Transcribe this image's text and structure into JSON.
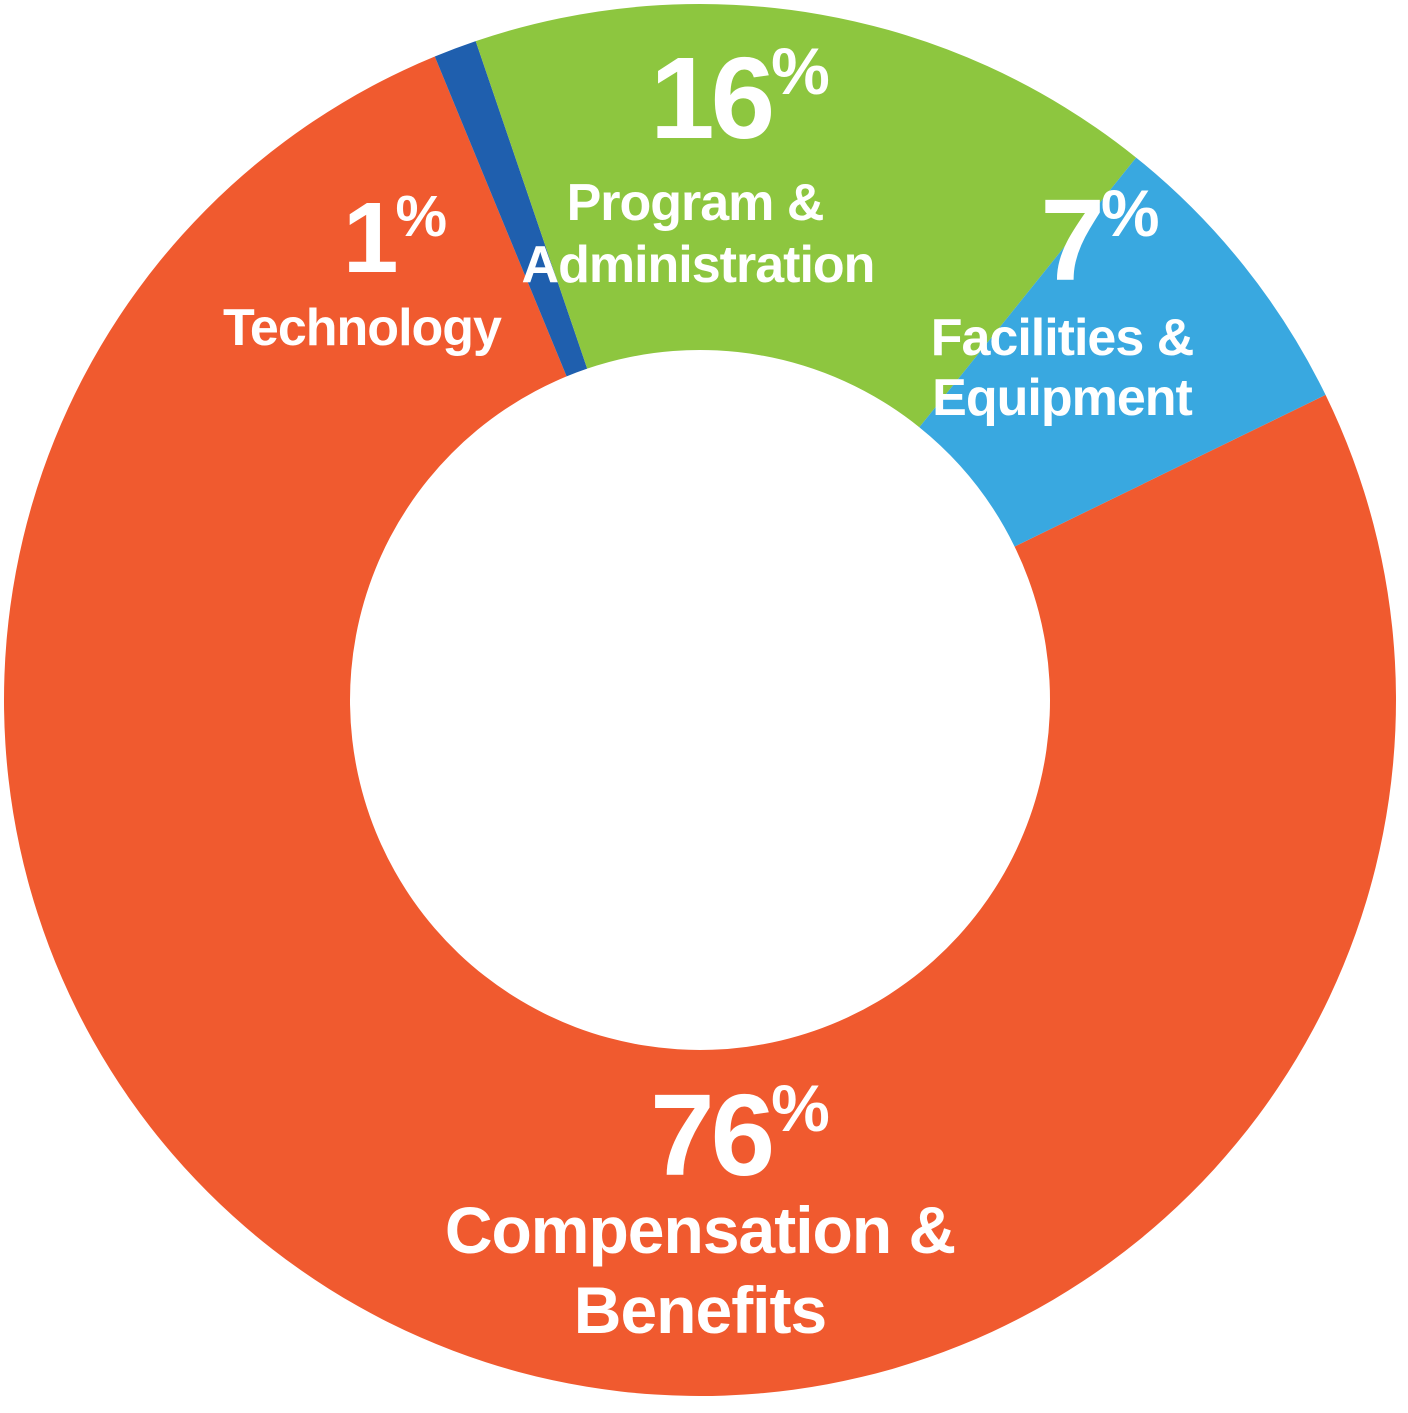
{
  "chart_data": {
    "type": "pie",
    "style": "donut",
    "title": "",
    "slices": [
      {
        "label": "Compensation & Benefits",
        "line1": "Compensation &",
        "line2": "Benefits",
        "value": 76,
        "value_text": "76",
        "color": "#f05a2f"
      },
      {
        "label": "Technology",
        "line1": "Technology",
        "line2": "",
        "value": 1,
        "value_text": "1",
        "color": "#1f5fae"
      },
      {
        "label": "Program & Administration",
        "line1": "Program &",
        "line2": "Administration",
        "value": 16,
        "value_text": "16",
        "color": "#8dc63f"
      },
      {
        "label": "Facilities & Equipment",
        "line1": "Facilities &",
        "line2": "Equipment",
        "value": 7,
        "value_text": "7",
        "color": "#39a8e0"
      }
    ],
    "unit": "%",
    "legend": "none",
    "grid": false
  }
}
